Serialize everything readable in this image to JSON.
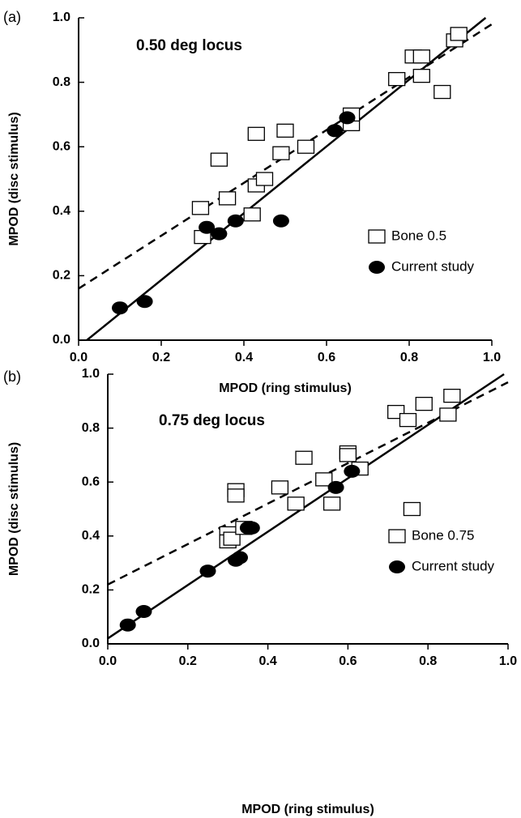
{
  "chart_data": [
    {
      "type": "scatter",
      "panel_label": "(a)",
      "title": "0.50 deg locus",
      "x_label": "MPOD (ring stimulus)",
      "y_label": "MPOD (disc stimulus)",
      "xlim": [
        0,
        1
      ],
      "ylim": [
        0,
        1
      ],
      "xticks": [
        {
          "value": 0,
          "label": "0.0"
        },
        0.2,
        0.4,
        0.6,
        0.8,
        {
          "value": 1,
          "label": "1.0"
        }
      ],
      "yticks": [
        {
          "value": 0,
          "label": "0.0"
        },
        0.2,
        0.4,
        0.6,
        0.8,
        {
          "value": 1,
          "label": "1.0"
        }
      ],
      "legend": "right",
      "series": [
        {
          "name": "Bone 0.5",
          "marker": "square",
          "color": "#000000",
          "x": [
            0.295,
            0.3,
            0.34,
            0.36,
            0.42,
            0.43,
            0.43,
            0.45,
            0.49,
            0.5,
            0.55,
            0.66,
            0.66,
            0.77,
            0.81,
            0.83,
            0.83,
            0.88,
            0.91,
            0.92
          ],
          "values": [
            0.41,
            0.32,
            0.56,
            0.44,
            0.39,
            0.48,
            0.64,
            0.5,
            0.58,
            0.65,
            0.6,
            0.67,
            0.7,
            0.81,
            0.88,
            0.88,
            0.82,
            0.77,
            0.93,
            0.95
          ]
        },
        {
          "name": "Current study",
          "marker": "ellipse",
          "color": "#000000",
          "x": [
            0.1,
            0.16,
            0.31,
            0.34,
            0.38,
            0.49,
            0.62,
            0.65
          ],
          "values": [
            0.1,
            0.12,
            0.35,
            0.33,
            0.37,
            0.37,
            0.65,
            0.69
          ]
        }
      ],
      "lines": [
        {
          "style": "solid",
          "x": [
            0.02,
            0.985
          ],
          "values": [
            0,
            1
          ]
        },
        {
          "style": "dashed",
          "x": [
            0,
            1
          ],
          "values": [
            0.16,
            0.98
          ]
        }
      ]
    },
    {
      "type": "scatter",
      "panel_label": "(b)",
      "title": "0.75 deg locus",
      "x_label": "MPOD (ring stimulus)",
      "y_label": "MPOD (disc stimulus)",
      "xlim": [
        0,
        1
      ],
      "ylim": [
        0,
        1
      ],
      "xticks": [
        {
          "value": 0,
          "label": "0.0"
        },
        0.2,
        0.4,
        0.6,
        0.8,
        {
          "value": 1,
          "label": "1.0"
        }
      ],
      "yticks": [
        {
          "value": 0,
          "label": "0.0"
        },
        0.2,
        0.4,
        0.6,
        0.8,
        {
          "value": 1,
          "label": "1.0"
        }
      ],
      "legend": "lower right",
      "series": [
        {
          "name": "Bone 0.75",
          "marker": "square",
          "color": "#000000",
          "x": [
            0.3,
            0.3,
            0.31,
            0.32,
            0.32,
            0.34,
            0.43,
            0.47,
            0.49,
            0.54,
            0.6,
            0.6,
            0.63,
            0.56,
            0.72,
            0.75,
            0.76,
            0.79,
            0.85,
            0.86
          ],
          "values": [
            0.41,
            0.38,
            0.39,
            0.57,
            0.55,
            0.43,
            0.58,
            0.52,
            0.69,
            0.61,
            0.71,
            0.7,
            0.65,
            0.52,
            0.86,
            0.83,
            0.5,
            0.89,
            0.85,
            0.92
          ]
        },
        {
          "name": "Current study",
          "marker": "ellipse",
          "color": "#000000",
          "x": [
            0.05,
            0.09,
            0.25,
            0.32,
            0.33,
            0.35,
            0.36,
            0.57,
            0.61
          ],
          "values": [
            0.07,
            0.12,
            0.27,
            0.31,
            0.32,
            0.43,
            0.43,
            0.58,
            0.64
          ]
        }
      ],
      "lines": [
        {
          "style": "solid",
          "x": [
            0,
            0.99
          ],
          "values": [
            0.02,
            1
          ]
        },
        {
          "style": "dashed",
          "x": [
            0,
            1
          ],
          "values": [
            0.22,
            0.97
          ]
        }
      ]
    }
  ]
}
